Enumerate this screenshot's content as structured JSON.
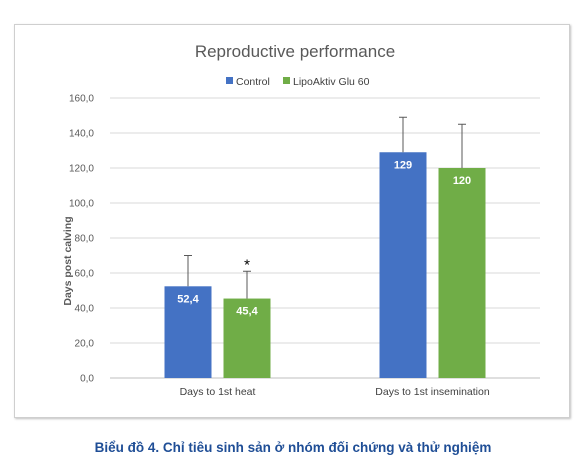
{
  "chart_data": {
    "type": "bar",
    "title": "Reproductive performance",
    "xlabel": "",
    "ylabel": "Days post calving",
    "ylim": [
      0,
      160
    ],
    "yticks": [
      "0,0",
      "20,0",
      "40,0",
      "60,0",
      "80,0",
      "100,0",
      "120,0",
      "140,0",
      "160,0"
    ],
    "grid": true,
    "legend_position": "top",
    "categories": [
      "Days to 1st heat",
      "Days to 1st insemination"
    ],
    "series": [
      {
        "name": "Control",
        "color": "#4472c4",
        "values": [
          52.4,
          129
        ],
        "labels": [
          "52,4",
          "129"
        ],
        "error_upper": [
          70,
          149
        ]
      },
      {
        "name": "LipoAktiv Glu 60",
        "color": "#70ad47",
        "values": [
          45.4,
          120
        ],
        "labels": [
          "45,4",
          "120"
        ],
        "error_upper": [
          61,
          145
        ]
      }
    ],
    "annotations": [
      {
        "text": "*",
        "series": 1,
        "category": 0
      }
    ]
  },
  "caption": "Biểu đồ 4. Chỉ tiêu sinh sản ở nhóm đối chứng và thử nghiệm"
}
